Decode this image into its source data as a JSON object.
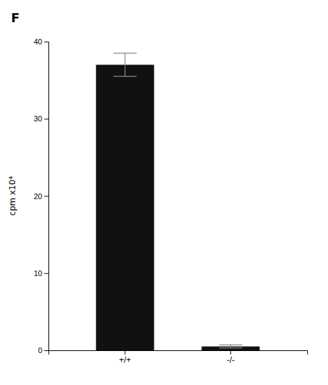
{
  "chart_data": {
    "type": "bar",
    "title": "F",
    "categories": [
      "+/+",
      "-/-"
    ],
    "values": [
      37.0,
      0.5
    ],
    "error": [
      1.5,
      0.2
    ],
    "color": "#111111",
    "ylabel": "cpm x10⁴",
    "ylim": [
      0,
      40
    ],
    "yticks": [
      0,
      10,
      20,
      30,
      40
    ]
  }
}
